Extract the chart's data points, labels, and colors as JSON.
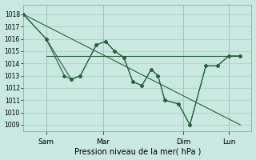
{
  "background_color": "#c8e8e0",
  "grid_color": "#a8ccC4",
  "line_color": "#2a6040",
  "xlabel": "Pression niveau de la mer( hPa )",
  "ylim": [
    1008.5,
    1018.8
  ],
  "yticks": [
    1009,
    1010,
    1011,
    1012,
    1013,
    1014,
    1015,
    1016,
    1017,
    1018
  ],
  "xlim": [
    0.0,
    10.0
  ],
  "x_tick_positions": [
    1.0,
    3.5,
    7.0,
    9.0
  ],
  "x_tick_labels": [
    "Sam",
    "Mar",
    "Dim",
    "Lun"
  ],
  "trend_line_x": [
    0.0,
    9.5
  ],
  "trend_line_y": [
    1018.0,
    1009.0
  ],
  "horiz_line_x": [
    1.0,
    9.5
  ],
  "horiz_line_y": [
    1014.6,
    1014.6
  ],
  "line1_x": [
    0.0,
    1.0,
    1.8,
    2.1,
    2.5,
    3.2,
    3.6,
    4.0,
    4.4,
    4.8,
    5.2,
    5.6,
    5.9,
    6.2,
    6.8,
    7.3,
    8.0,
    8.5,
    9.0,
    9.5
  ],
  "line1_y": [
    1018.0,
    1016.0,
    1013.0,
    1012.7,
    1013.0,
    1015.5,
    1015.8,
    1015.0,
    1014.5,
    1012.5,
    1012.2,
    1013.5,
    1013.0,
    1011.0,
    1010.7,
    1009.0,
    1013.8,
    1013.8,
    1014.6,
    1014.6
  ],
  "line2_x": [
    0.0,
    1.0,
    2.1,
    2.5,
    3.2,
    3.6,
    4.0,
    4.4,
    4.8,
    5.2,
    5.6,
    5.9,
    6.2,
    6.8,
    7.3,
    8.0,
    8.5,
    9.0,
    9.5
  ],
  "line2_y": [
    1018.0,
    1016.0,
    1012.7,
    1013.0,
    1015.5,
    1015.8,
    1015.0,
    1014.5,
    1012.5,
    1012.2,
    1013.5,
    1013.0,
    1011.0,
    1010.7,
    1009.0,
    1013.8,
    1013.8,
    1014.6,
    1014.6
  ]
}
